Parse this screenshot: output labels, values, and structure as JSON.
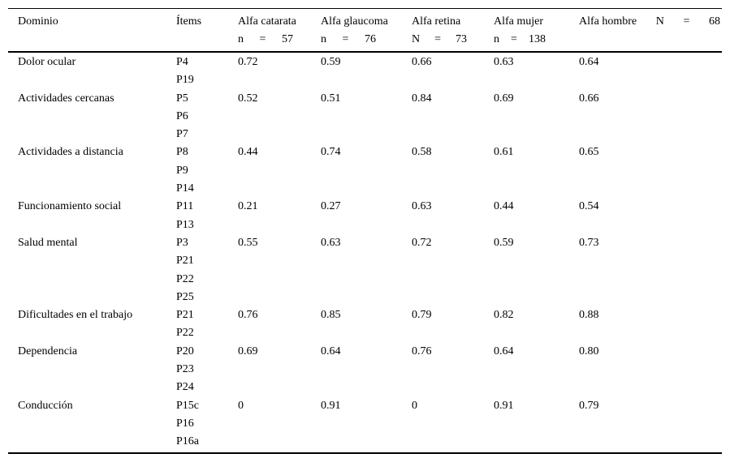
{
  "table": {
    "header": {
      "col_dominio": "Dominio",
      "col_items": "Ítems",
      "col_catarata": {
        "label": "Alfa catarata",
        "n_label": "n",
        "eq": "=",
        "n_value": "57"
      },
      "col_glaucoma": {
        "label": "Alfa glaucoma",
        "n_label": "n",
        "eq": "=",
        "n_value": "76"
      },
      "col_retina": {
        "label": "Alfa retina",
        "n_label": "N",
        "eq": "=",
        "n_value": "73"
      },
      "col_mujer": {
        "label": "Alfa mujer",
        "n_label": "n",
        "eq": "=",
        "n_value": "138"
      },
      "col_hombre": {
        "label": "Alfa hombre",
        "n_label": "N",
        "eq": "=",
        "n_value": "68"
      }
    },
    "rows": [
      {
        "domain": "Dolor ocular",
        "items": [
          "P4",
          "P19"
        ],
        "values": [
          "0.72",
          "0.59",
          "0.66",
          "0.63",
          "0.64"
        ]
      },
      {
        "domain": "Actividades cercanas",
        "items": [
          "P5",
          "P6",
          "P7"
        ],
        "values": [
          "0.52",
          "0.51",
          "0.84",
          "0.69",
          "0.66"
        ]
      },
      {
        "domain": "Actividades a distancia",
        "items": [
          "P8",
          "P9",
          "P14"
        ],
        "values": [
          "0.44",
          "0.74",
          "0.58",
          "0.61",
          "0.65"
        ]
      },
      {
        "domain": "Funcionamiento social",
        "items": [
          "P11",
          "P13"
        ],
        "values": [
          "0.21",
          "0.27",
          "0.63",
          "0.44",
          "0.54"
        ]
      },
      {
        "domain": "Salud mental",
        "items": [
          "P3",
          "P21",
          "P22",
          "P25"
        ],
        "values": [
          "0.55",
          "0.63",
          "0.72",
          "0.59",
          "0.73"
        ]
      },
      {
        "domain": "Dificultades en el trabajo",
        "items": [
          "P21",
          "P22"
        ],
        "values": [
          "0.76",
          "0.85",
          "0.79",
          "0.82",
          "0.88"
        ]
      },
      {
        "domain": "Dependencia",
        "items": [
          "P20",
          "P23",
          "P24"
        ],
        "values": [
          "0.69",
          "0.64",
          "0.76",
          "0.64",
          "0.80"
        ]
      },
      {
        "domain": "Conducción",
        "items": [
          "P15c",
          "P16",
          "P16a"
        ],
        "values": [
          "0",
          "0.91",
          "0",
          "0.91",
          "0.79"
        ]
      }
    ]
  }
}
